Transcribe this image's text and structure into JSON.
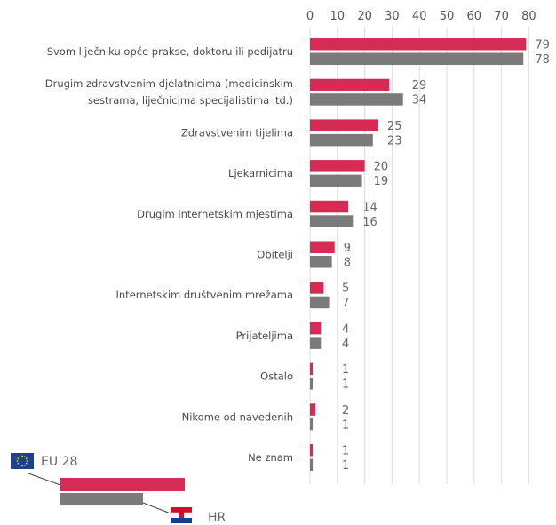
{
  "chart_data": {
    "type": "bar",
    "orientation": "horizontal",
    "xlim": [
      0,
      80
    ],
    "ticks": [
      "0",
      "10",
      "20",
      "30",
      "40",
      "50",
      "60",
      "70",
      "80"
    ],
    "grid": true,
    "categories": [
      [
        "Svom liječniku opće prakse, doktoru ili pedijatru"
      ],
      [
        "Drugim zdravstvenim djelatnicima (medicinskim",
        "sestrama, liječnicima specijalistima itd.)"
      ],
      [
        "Zdravstvenim tijelima"
      ],
      [
        "Ljekarnicima"
      ],
      [
        "Drugim internetskim mjestima"
      ],
      [
        "Obitelji"
      ],
      [
        "Internetskim društvenim mrežama"
      ],
      [
        "Prijateljima"
      ],
      [
        "Ostalo"
      ],
      [
        "Nikome od navedenih"
      ],
      [
        "Ne znam"
      ]
    ],
    "series": [
      {
        "name": "EU 28",
        "color": "#d52b55",
        "values": [
          79,
          29,
          25,
          20,
          14,
          9,
          5,
          4,
          1,
          2,
          1
        ]
      },
      {
        "name": "HR",
        "color": "#7a7a7a",
        "values": [
          78,
          34,
          23,
          19,
          16,
          8,
          7,
          4,
          1,
          1,
          1
        ]
      }
    ],
    "legend": {
      "placement": "bottom-left",
      "eu_flag": "eu-flag-icon",
      "hr_flag": "croatia-flag-icon"
    }
  }
}
